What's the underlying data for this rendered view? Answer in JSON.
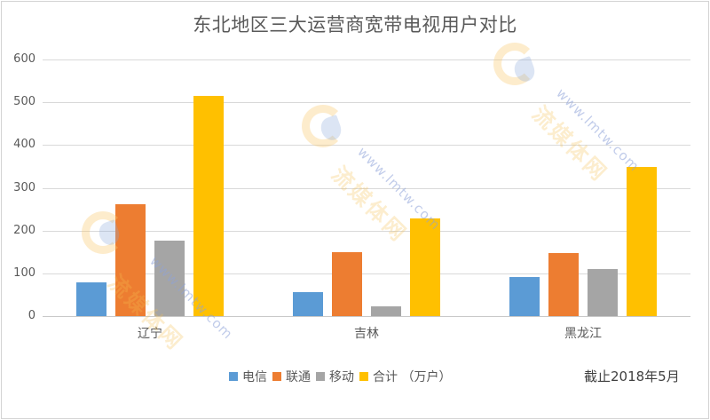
{
  "chart_data": {
    "type": "bar",
    "title": "东北地区三大运营商宽带电视用户对比",
    "categories": [
      "辽宁",
      "吉林",
      "黑龙江"
    ],
    "series": [
      {
        "name": "电信",
        "color": "#5b9bd5",
        "values": [
          79,
          56,
          91
        ]
      },
      {
        "name": "联通",
        "color": "#ed7d31",
        "values": [
          261,
          149,
          147
        ]
      },
      {
        "name": "移动",
        "color": "#a5a5a5",
        "values": [
          176,
          23,
          110
        ]
      },
      {
        "name": "合计 （万户）",
        "color": "#ffc000",
        "values": [
          515,
          228,
          348
        ]
      }
    ],
    "xlabel": "",
    "ylabel": "",
    "ylim": [
      0,
      600
    ],
    "yticks": [
      0,
      100,
      200,
      300,
      400,
      500,
      600
    ],
    "grid": true,
    "legend_position": "bottom",
    "annotation": "截止2018年5月"
  },
  "title": "东北地区三大运营商宽带电视用户对比",
  "yticks": [
    "600",
    "500",
    "400",
    "300",
    "200",
    "100",
    "0"
  ],
  "categories": [
    "辽宁",
    "吉林",
    "黑龙江"
  ],
  "legend": [
    "电信",
    "联通",
    "移动",
    "合计 （万户）"
  ],
  "note": "截止2018年5月",
  "watermark": {
    "url": "www.lmtw.com",
    "brand": "流媒体网"
  }
}
